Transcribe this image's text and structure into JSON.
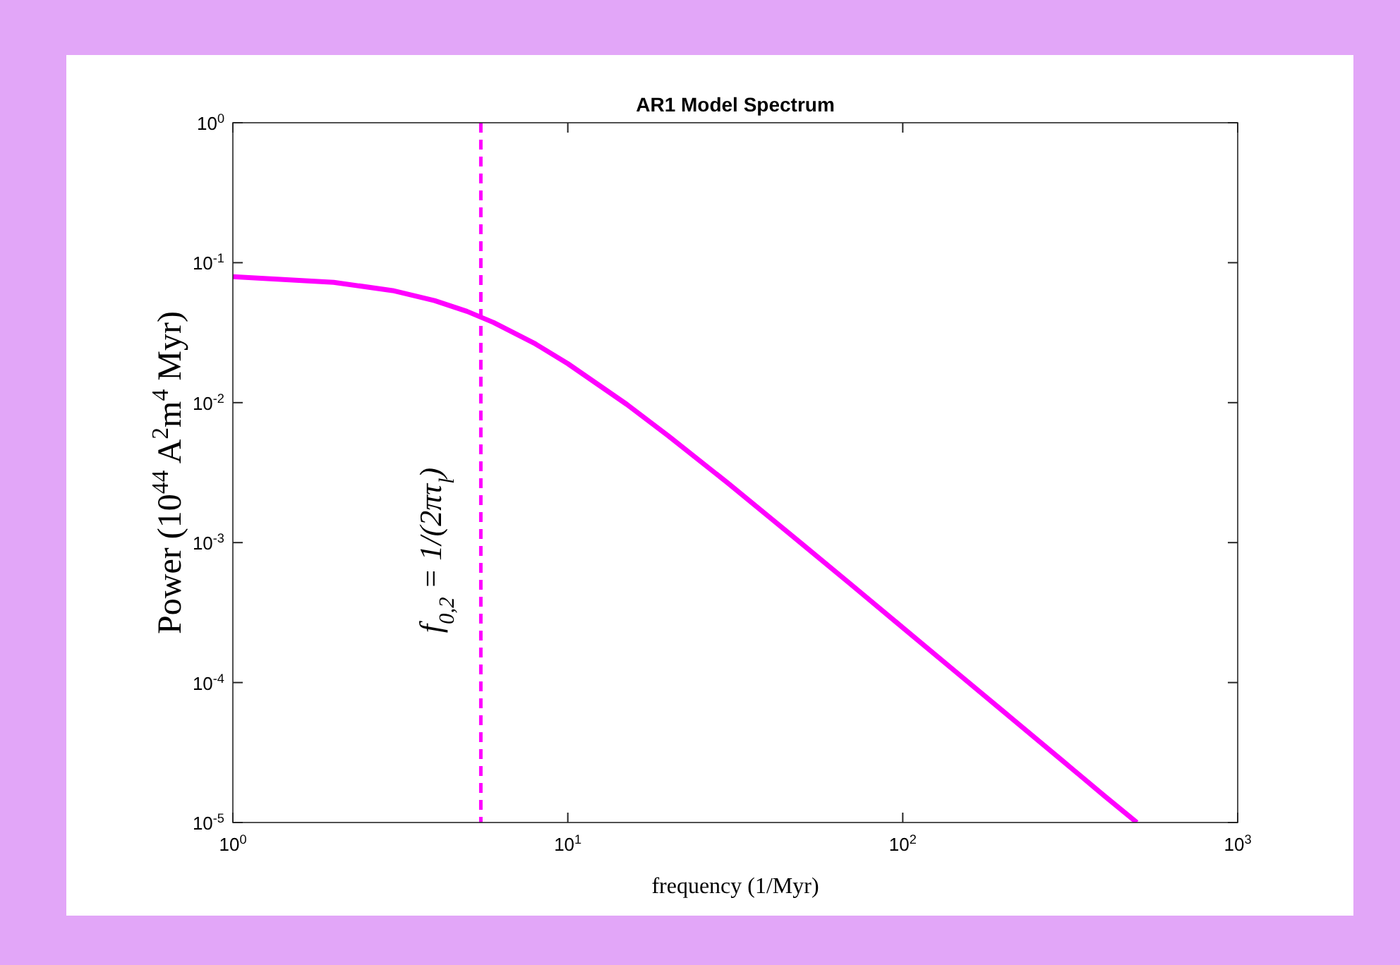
{
  "chart_data": {
    "type": "line",
    "title": "AR1 Model Spectrum",
    "xlabel": "frequency (1/Myr)",
    "ylabel": "Power (10$^{44}$ A$^{2}$m$^{4}$ Myr)",
    "log": "xy",
    "xlim": [
      1,
      1000
    ],
    "ylim": [
      1e-05,
      1
    ],
    "xticks": [
      {
        "value": 1,
        "label": "10$^{0}$"
      },
      {
        "value": 10,
        "label": "10$^{1}$"
      },
      {
        "value": 100,
        "label": "10$^{2}$"
      },
      {
        "value": 1000,
        "label": "10$^{3}$"
      }
    ],
    "yticks": [
      {
        "value": 1e-05,
        "label": "10$^{-5}$"
      },
      {
        "value": 0.0001,
        "label": "10$^{-4}$"
      },
      {
        "value": 0.001,
        "label": "10$^{-3}$"
      },
      {
        "value": 0.01,
        "label": "10$^{-2}$"
      },
      {
        "value": 0.1,
        "label": "10$^{-1}$"
      },
      {
        "value": 1,
        "label": "10$^{0}$"
      }
    ],
    "x": [
      1,
      2,
      3,
      4,
      5,
      6,
      8,
      10,
      15,
      20,
      30,
      50,
      70,
      100,
      150,
      200,
      300,
      400,
      500
    ],
    "series": [
      {
        "color": "#ff00ff",
        "values": [
          0.0794,
          0.0724,
          0.0632,
          0.0536,
          0.0449,
          0.0374,
          0.0263,
          0.019,
          0.00972,
          0.00577,
          0.00267,
          0.00098,
          0.000503,
          0.000247,
          0.00011,
          6.2e-05,
          2.76e-05,
          1.55e-05,
          1e-05
        ]
      }
    ],
    "annotations": [
      "f$_{0,2}$ = 1/(2πτ$_{l}$)"
    ],
    "ref_lines": [
      {
        "axis": "x",
        "value": 5.5,
        "color": "#ff00ff",
        "line_style": "dashed"
      }
    ]
  }
}
